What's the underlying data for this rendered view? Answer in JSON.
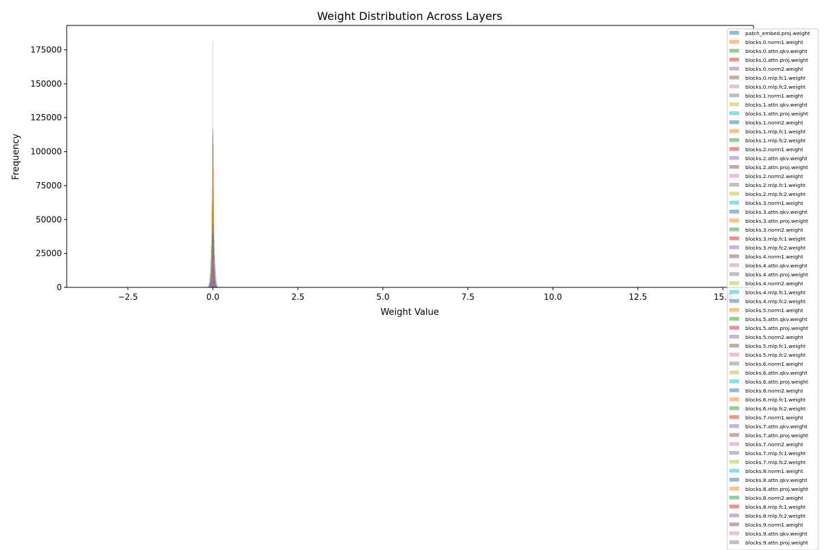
{
  "chart_data": {
    "type": "histogram",
    "title": "Weight Distribution Across Layers",
    "xlabel": "Weight Value",
    "ylabel": "Frequency",
    "xlim": [
      -4.3,
      15.9
    ],
    "ylim": [
      0,
      193000
    ],
    "xticks": [
      -2.5,
      0.0,
      2.5,
      5.0,
      7.5,
      10.0,
      12.5,
      15.0
    ],
    "xtick_labels": [
      "−2.5",
      "0.0",
      "2.5",
      "5.0",
      "7.5",
      "10.0",
      "12.5",
      "15.0"
    ],
    "yticks": [
      0,
      25000,
      50000,
      75000,
      100000,
      125000,
      150000,
      175000
    ],
    "ytick_labels": [
      "0",
      "25000",
      "50000",
      "75000",
      "100000",
      "125000",
      "150000",
      "175000"
    ],
    "grid": false,
    "legend_position": "right",
    "palette": [
      "#1f77b4",
      "#ff7f0e",
      "#2ca02c",
      "#d62728",
      "#9467bd",
      "#8c564b",
      "#e377c2",
      "#7f7f7f",
      "#bcbd22",
      "#17becf"
    ],
    "series": [
      {
        "name": "patch_embed.proj.weight",
        "peak": 45000,
        "center": 0.0,
        "width": 0.05
      },
      {
        "name": "blocks.0.norm1.weight",
        "peak": 12000,
        "center": 0.0,
        "width": 0.04
      },
      {
        "name": "blocks.0.attn.qkv.weight",
        "peak": 185000,
        "center": 0.0,
        "width": 0.01
      },
      {
        "name": "blocks.0.attn.proj.weight",
        "peak": 120000,
        "center": 0.0,
        "width": 0.012
      },
      {
        "name": "blocks.0.norm2.weight",
        "peak": 14000,
        "center": 0.0,
        "width": 0.04
      },
      {
        "name": "blocks.0.mlp.fc1.weight",
        "peak": 126000,
        "center": 0.0,
        "width": 0.015
      },
      {
        "name": "blocks.0.mlp.fc2.weight",
        "peak": 60000,
        "center": 0.0,
        "width": 0.02
      },
      {
        "name": "blocks.1.norm1.weight",
        "peak": 14000,
        "center": 0.0,
        "width": 0.04
      },
      {
        "name": "blocks.1.attn.qkv.weight",
        "peak": 73000,
        "center": -0.03,
        "width": 0.02
      },
      {
        "name": "blocks.1.attn.proj.weight",
        "peak": 58000,
        "center": 0.0,
        "width": 0.02
      },
      {
        "name": "blocks.1.norm2.weight",
        "peak": 15000,
        "center": 0.0,
        "width": 0.04
      },
      {
        "name": "blocks.1.mlp.fc1.weight",
        "peak": 95000,
        "center": 0.02,
        "width": 0.015
      },
      {
        "name": "blocks.1.mlp.fc2.weight",
        "peak": 60000,
        "center": 0.0,
        "width": 0.02
      },
      {
        "name": "blocks.2.norm1.weight",
        "peak": 15000,
        "center": 0.0,
        "width": 0.04
      },
      {
        "name": "blocks.2.attn.qkv.weight",
        "peak": 55000,
        "center": 0.0,
        "width": 0.02
      },
      {
        "name": "blocks.2.attn.proj.weight",
        "peak": 57000,
        "center": 0.0,
        "width": 0.02
      },
      {
        "name": "blocks.2.norm2.weight",
        "peak": 14000,
        "center": 0.0,
        "width": 0.04
      },
      {
        "name": "blocks.2.mlp.fc1.weight",
        "peak": 48000,
        "center": 0.0,
        "width": 0.02
      },
      {
        "name": "blocks.2.mlp.fc2.weight",
        "peak": 46000,
        "center": 0.0,
        "width": 0.025
      },
      {
        "name": "blocks.3.norm1.weight",
        "peak": 15000,
        "center": 0.0,
        "width": 0.04
      },
      {
        "name": "blocks.3.attn.qkv.weight",
        "peak": 52000,
        "center": 0.0,
        "width": 0.022
      },
      {
        "name": "blocks.3.attn.proj.weight",
        "peak": 63000,
        "center": 0.01,
        "width": 0.02
      },
      {
        "name": "blocks.3.norm2.weight",
        "peak": 15000,
        "center": 0.0,
        "width": 0.04
      },
      {
        "name": "blocks.3.mlp.fc1.weight",
        "peak": 48000,
        "center": 0.0,
        "width": 0.022
      },
      {
        "name": "blocks.3.mlp.fc2.weight",
        "peak": 46000,
        "center": 0.0,
        "width": 0.025
      },
      {
        "name": "blocks.4.norm1.weight",
        "peak": 15000,
        "center": 0.0,
        "width": 0.04
      },
      {
        "name": "blocks.4.attn.qkv.weight",
        "peak": 45000,
        "center": 0.0,
        "width": 0.025
      },
      {
        "name": "blocks.4.attn.proj.weight",
        "peak": 47000,
        "center": 0.0,
        "width": 0.025
      },
      {
        "name": "blocks.4.norm2.weight",
        "peak": 15000,
        "center": 0.0,
        "width": 0.04
      },
      {
        "name": "blocks.4.mlp.fc1.weight",
        "peak": 44000,
        "center": 0.0,
        "width": 0.025
      },
      {
        "name": "blocks.4.mlp.fc2.weight",
        "peak": 42000,
        "center": 0.0,
        "width": 0.027
      },
      {
        "name": "blocks.5.norm1.weight",
        "peak": 15000,
        "center": 0.0,
        "width": 0.04
      },
      {
        "name": "blocks.5.attn.qkv.weight",
        "peak": 40000,
        "center": 0.0,
        "width": 0.027
      },
      {
        "name": "blocks.5.attn.proj.weight",
        "peak": 38000,
        "center": 0.0,
        "width": 0.028
      },
      {
        "name": "blocks.5.norm2.weight",
        "peak": 15000,
        "center": 0.0,
        "width": 0.04
      },
      {
        "name": "blocks.5.mlp.fc1.weight",
        "peak": 36000,
        "center": 0.0,
        "width": 0.028
      },
      {
        "name": "blocks.5.mlp.fc2.weight",
        "peak": 34000,
        "center": 0.0,
        "width": 0.03
      },
      {
        "name": "blocks.6.norm1.weight",
        "peak": 15000,
        "center": 0.0,
        "width": 0.04
      },
      {
        "name": "blocks.6.attn.qkv.weight",
        "peak": 33000,
        "center": 0.0,
        "width": 0.03
      },
      {
        "name": "blocks.6.attn.proj.weight",
        "peak": 32000,
        "center": 0.0,
        "width": 0.03
      },
      {
        "name": "blocks.6.norm2.weight",
        "peak": 15000,
        "center": 0.0,
        "width": 0.04
      },
      {
        "name": "blocks.6.mlp.fc1.weight",
        "peak": 31000,
        "center": 0.0,
        "width": 0.031
      },
      {
        "name": "blocks.6.mlp.fc2.weight",
        "peak": 30000,
        "center": 0.0,
        "width": 0.032
      },
      {
        "name": "blocks.7.norm1.weight",
        "peak": 15000,
        "center": 0.0,
        "width": 0.04
      },
      {
        "name": "blocks.7.attn.qkv.weight",
        "peak": 29000,
        "center": 0.0,
        "width": 0.032
      },
      {
        "name": "blocks.7.attn.proj.weight",
        "peak": 28000,
        "center": 0.0,
        "width": 0.033
      },
      {
        "name": "blocks.7.norm2.weight",
        "peak": 15000,
        "center": 0.0,
        "width": 0.04
      },
      {
        "name": "blocks.7.mlp.fc1.weight",
        "peak": 27000,
        "center": 0.0,
        "width": 0.034
      },
      {
        "name": "blocks.7.mlp.fc2.weight",
        "peak": 26000,
        "center": 0.0,
        "width": 0.035
      },
      {
        "name": "blocks.8.norm1.weight",
        "peak": 15000,
        "center": 0.0,
        "width": 0.04
      },
      {
        "name": "blocks.8.attn.qkv.weight",
        "peak": 25000,
        "center": 0.0,
        "width": 0.035
      },
      {
        "name": "blocks.8.attn.proj.weight",
        "peak": 24000,
        "center": 0.0,
        "width": 0.036
      },
      {
        "name": "blocks.8.norm2.weight",
        "peak": 15000,
        "center": 0.0,
        "width": 0.04
      },
      {
        "name": "blocks.8.mlp.fc1.weight",
        "peak": 23000,
        "center": 0.0,
        "width": 0.037
      },
      {
        "name": "blocks.8.mlp.fc2.weight",
        "peak": 22000,
        "center": 0.0,
        "width": 0.038
      },
      {
        "name": "blocks.9.norm1.weight",
        "peak": 15000,
        "center": 0.0,
        "width": 0.04
      },
      {
        "name": "blocks.9.attn.qkv.weight",
        "peak": 21000,
        "center": 0.0,
        "width": 0.039
      },
      {
        "name": "blocks.9.attn.proj.weight",
        "peak": 20000,
        "center": 0.0,
        "width": 0.04
      }
    ]
  }
}
